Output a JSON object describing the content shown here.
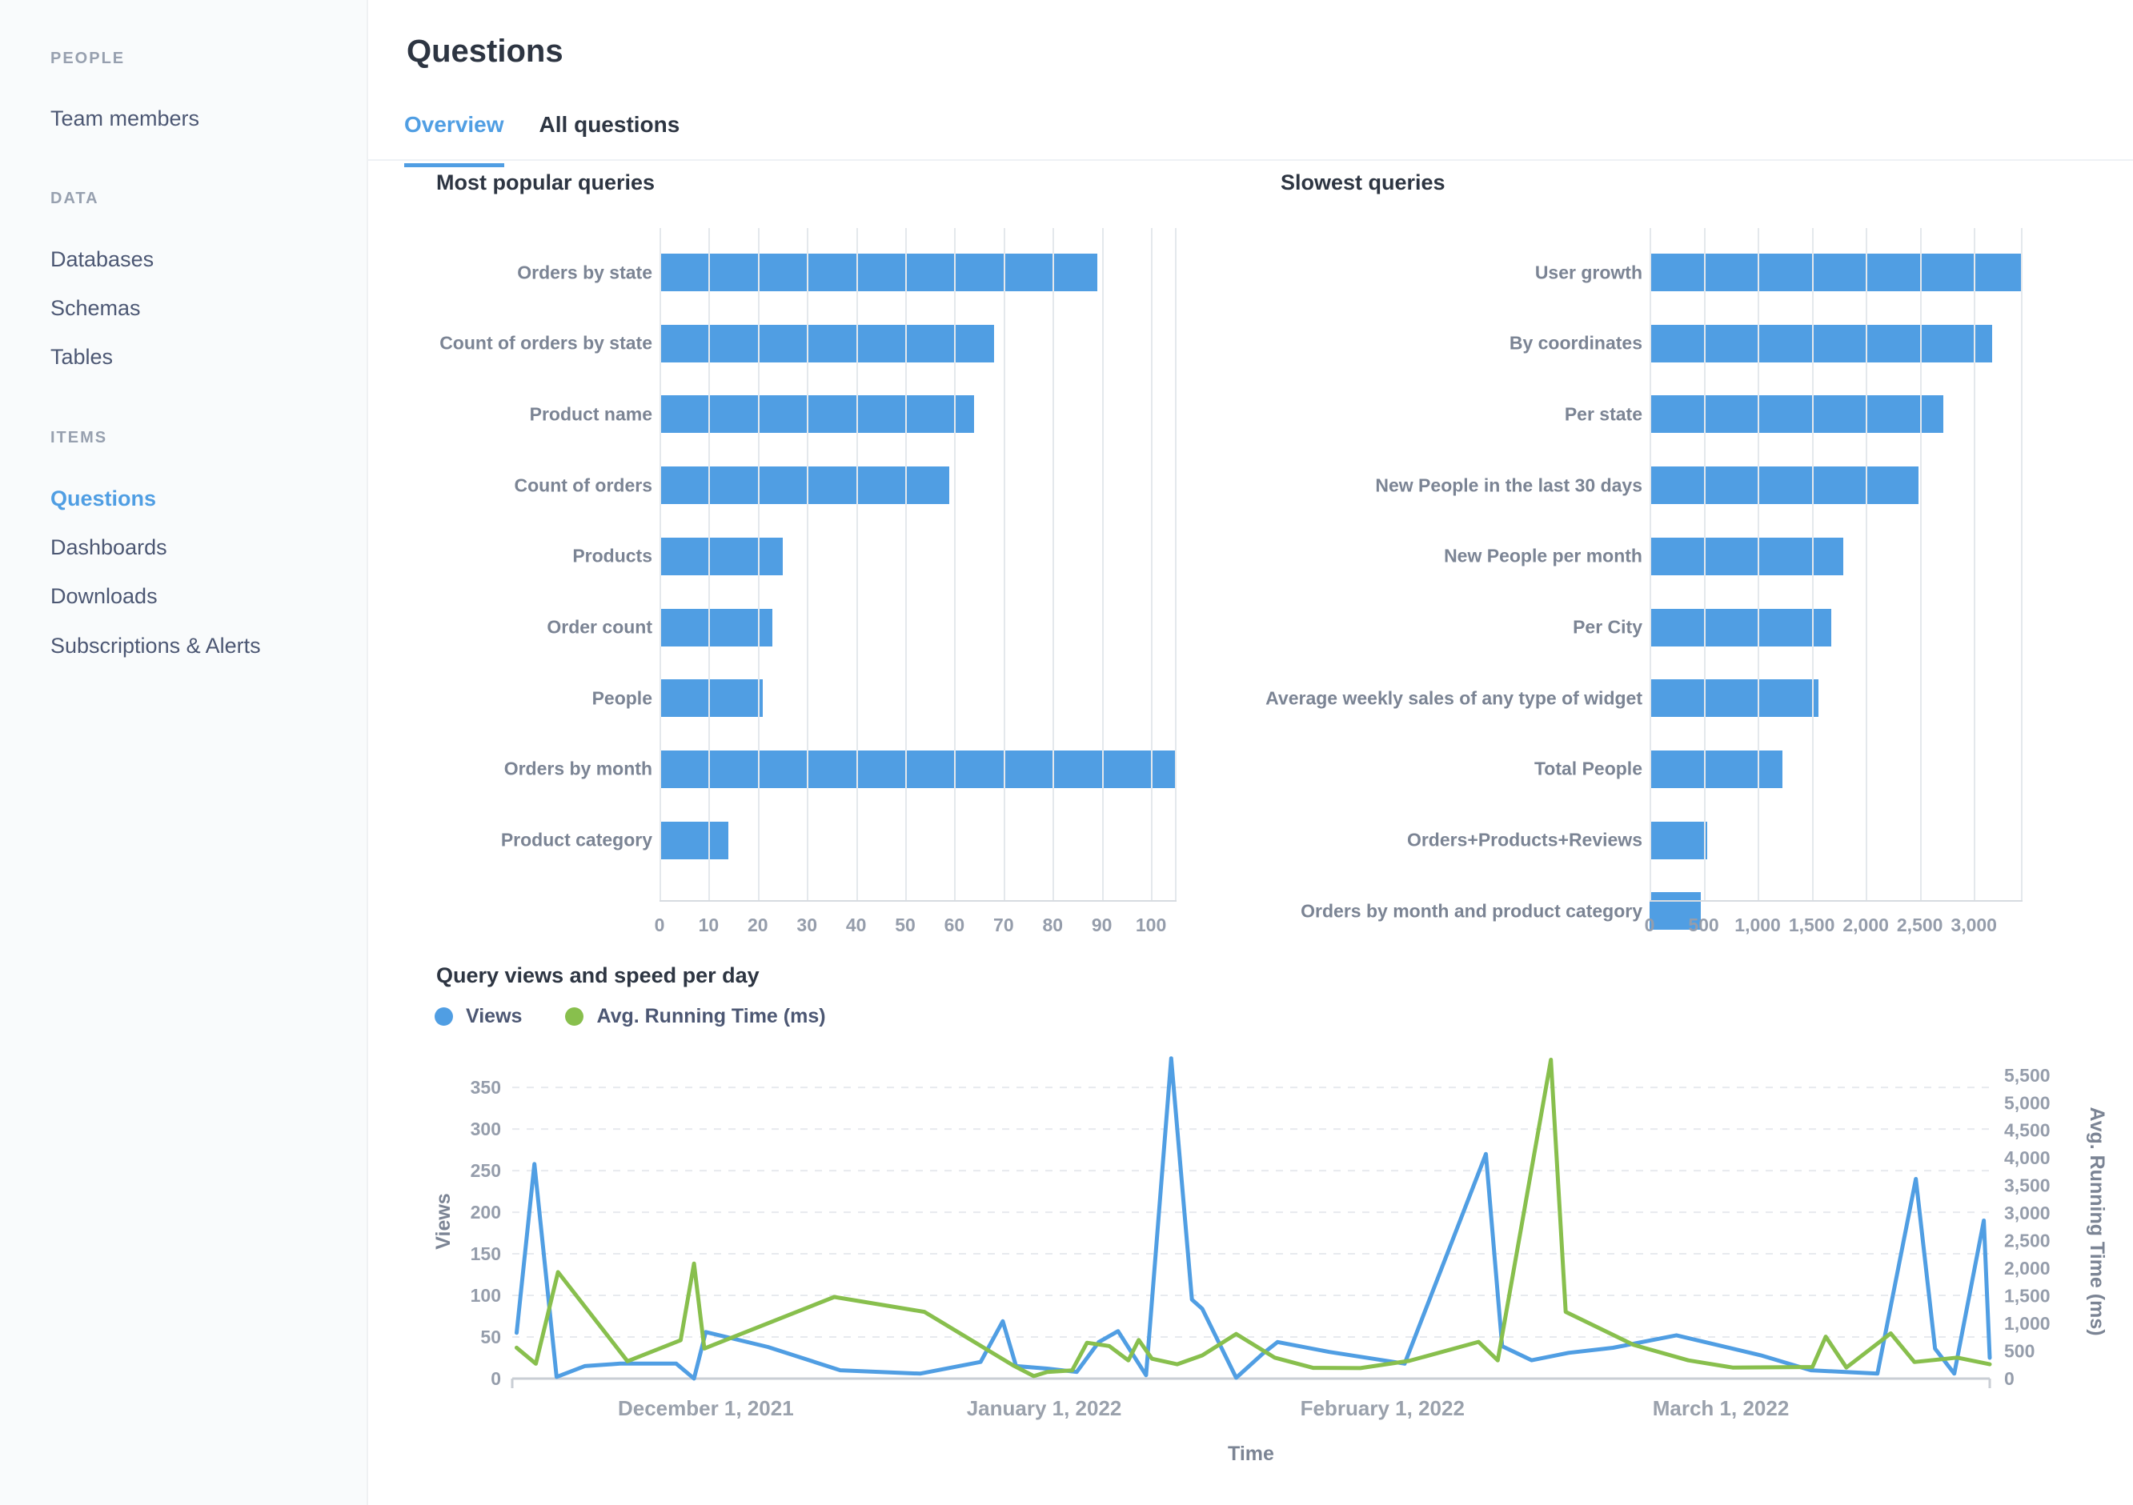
{
  "sidebar": {
    "sections": [
      {
        "title": "People",
        "items": [
          {
            "label": "Team members",
            "active": false
          }
        ]
      },
      {
        "title": "Data",
        "items": [
          {
            "label": "Databases",
            "active": false
          },
          {
            "label": "Schemas",
            "active": false
          },
          {
            "label": "Tables",
            "active": false
          }
        ]
      },
      {
        "title": "Items",
        "items": [
          {
            "label": "Questions",
            "active": true
          },
          {
            "label": "Dashboards",
            "active": false
          },
          {
            "label": "Downloads",
            "active": false
          },
          {
            "label": "Subscriptions & Alerts",
            "active": false
          }
        ]
      }
    ]
  },
  "header": {
    "title": "Questions",
    "tabs": [
      {
        "label": "Overview",
        "active": true
      },
      {
        "label": "All questions",
        "active": false
      }
    ]
  },
  "colors": {
    "accent_blue": "#509EE3",
    "series_green": "#88BF4D",
    "text_dark": "#2D3542",
    "text_slate": "#4C5773",
    "tick_gray": "#959DAB",
    "gridline": "#E4E8EC",
    "sidebar_bg": "#F9FBFC"
  },
  "chart_data": [
    {
      "type": "bar",
      "title": "Most popular queries",
      "orientation": "horizontal",
      "categories": [
        "Orders by state",
        "Count of orders by state",
        "Product name",
        "Count of orders",
        "Products",
        "Order count",
        "People",
        "Orders by month",
        "Product category"
      ],
      "values": [
        89,
        68,
        64,
        59,
        25,
        23,
        21,
        105,
        14
      ],
      "xlabel": "",
      "ylabel": "",
      "xlim": [
        0,
        105.2
      ],
      "ticks": [
        0,
        10,
        20,
        30,
        40,
        50,
        60,
        70,
        80,
        90,
        100
      ],
      "thousands": false,
      "grid": true,
      "bar_color": "#509EE3"
    },
    {
      "type": "bar",
      "title": "Slowest queries",
      "orientation": "horizontal",
      "categories": [
        "User growth",
        "By coordinates",
        "Per state",
        "New People in the last 30 days",
        "New People per month",
        "Per City",
        "Average weekly sales of any type of widget",
        "Total People",
        "Orders+Products+Reviews",
        "Orders by month and product category"
      ],
      "values": [
        3450,
        3170,
        2715,
        2490,
        1790,
        1680,
        1560,
        1230,
        535,
        475
      ],
      "xlabel": "",
      "ylabel": "",
      "xlim": [
        0,
        3450
      ],
      "ticks": [
        0,
        500,
        1000,
        1500,
        2000,
        2500,
        3000
      ],
      "thousands": true,
      "grid": true,
      "bar_color": "#509EE3"
    },
    {
      "type": "line",
      "title": "Query views and speed per day",
      "legend": [
        {
          "label": "Views",
          "color": "#509EE3"
        },
        {
          "label": "Avg. Running Time (ms)",
          "color": "#88BF4D"
        }
      ],
      "x_axis": {
        "title": "Time",
        "range_note": "daily points from mid-November 2021 to late March 2022",
        "ticks": [
          {
            "label": "December 1, 2021",
            "pos": 13.1
          },
          {
            "label": "January 1, 2022",
            "pos": 36.0
          },
          {
            "label": "February 1, 2022",
            "pos": 58.9
          },
          {
            "label": "March 1, 2022",
            "pos": 81.8
          }
        ]
      },
      "y_left": {
        "title": "Views",
        "min": 0,
        "max": 350,
        "step": 50,
        "top_value": 378
      },
      "y_right": {
        "title": "Avg. Running Time (ms)",
        "min": 0,
        "max": 5500,
        "step": 500,
        "top_value": 5700
      },
      "grid": "horizontal-dashed",
      "legend_position": "top-left",
      "series": [
        {
          "name": "Views",
          "axis": "left",
          "color": "#509EE3",
          "points": [
            [
              0.3,
              55
            ],
            [
              1.5,
              258
            ],
            [
              3,
              2
            ],
            [
              4.9,
              15
            ],
            [
              7.3,
              18
            ],
            [
              11.1,
              18
            ],
            [
              12.3,
              0
            ],
            [
              13.1,
              56
            ],
            [
              17.3,
              38
            ],
            [
              22.2,
              10
            ],
            [
              27.6,
              6
            ],
            [
              31.7,
              20
            ],
            [
              33.2,
              69
            ],
            [
              34.1,
              15
            ],
            [
              36.2,
              12
            ],
            [
              38.2,
              8
            ],
            [
              39.7,
              44
            ],
            [
              41,
              57
            ],
            [
              42.9,
              4
            ],
            [
              44.6,
              385
            ],
            [
              46,
              95
            ],
            [
              46.7,
              84
            ],
            [
              49,
              1
            ],
            [
              50.8,
              30
            ],
            [
              51.8,
              44
            ],
            [
              55.3,
              32
            ],
            [
              60.4,
              18
            ],
            [
              65.9,
              270
            ],
            [
              67,
              39
            ],
            [
              69,
              22
            ],
            [
              71.5,
              31
            ],
            [
              74.5,
              37
            ],
            [
              78.8,
              52
            ],
            [
              84.5,
              28
            ],
            [
              87.9,
              10
            ],
            [
              92.4,
              6
            ],
            [
              95,
              240
            ],
            [
              96.3,
              36
            ],
            [
              97.6,
              6
            ],
            [
              99.6,
              190
            ],
            [
              100,
              25
            ]
          ]
        },
        {
          "name": "Avg. Running Time (ms)",
          "axis": "right",
          "color": "#88BF4D",
          "points": [
            [
              0.3,
              560
            ],
            [
              1.6,
              270
            ],
            [
              3.1,
              1930
            ],
            [
              7.8,
              315
            ],
            [
              11.4,
              695
            ],
            [
              12.3,
              2085
            ],
            [
              13,
              545
            ],
            [
              21.8,
              1480
            ],
            [
              27.9,
              1210
            ],
            [
              33.9,
              240
            ],
            [
              35.3,
              45
            ],
            [
              36.2,
              120
            ],
            [
              37.9,
              150
            ],
            [
              38.9,
              650
            ],
            [
              40.4,
              590
            ],
            [
              41.7,
              330
            ],
            [
              42.4,
              700
            ],
            [
              43.3,
              360
            ],
            [
              45,
              260
            ],
            [
              46.7,
              420
            ],
            [
              49,
              810
            ],
            [
              51.6,
              380
            ],
            [
              54.2,
              195
            ],
            [
              57.4,
              190
            ],
            [
              60.7,
              320
            ],
            [
              65.4,
              665
            ],
            [
              66.7,
              330
            ],
            [
              70.3,
              5780
            ],
            [
              71.3,
              1210
            ],
            [
              75.9,
              610
            ],
            [
              79.6,
              330
            ],
            [
              82.6,
              200
            ],
            [
              88,
              210
            ],
            [
              88.9,
              760
            ],
            [
              90.3,
              200
            ],
            [
              93.3,
              820
            ],
            [
              94.9,
              300
            ],
            [
              97.8,
              380
            ],
            [
              100,
              260
            ]
          ]
        }
      ]
    }
  ]
}
